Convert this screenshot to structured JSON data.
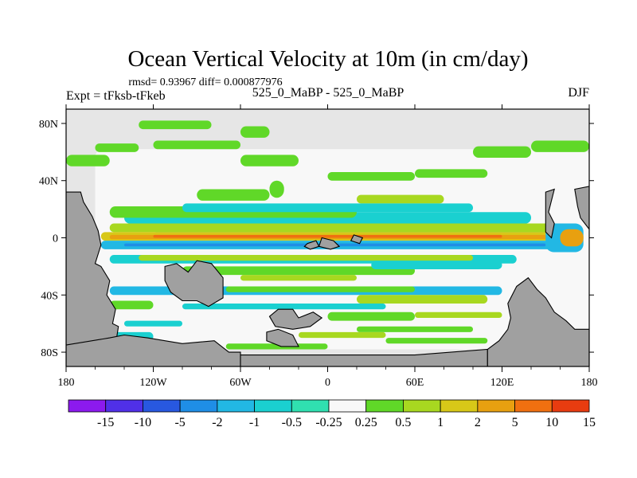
{
  "chart_data": {
    "type": "heatmap",
    "title": "Ocean Vertical Velocity at 10m (in cm/day)",
    "subtitle": "rmsd= 0.93967 diff= 0.000877976",
    "left_label": "Expt = tFksb-tFkeb",
    "center_label": "525_0_MaBP - 525_0_MaBP",
    "right_label": "DJF",
    "x_axis": {
      "range": [
        -180,
        180
      ],
      "ticks": [
        -180,
        -120,
        -60,
        0,
        60,
        120,
        180
      ],
      "tick_labels": [
        "180",
        "120W",
        "60W",
        "0",
        "60E",
        "120E",
        "180"
      ]
    },
    "y_axis": {
      "range": [
        -90,
        90
      ],
      "ticks": [
        80,
        40,
        0,
        -40,
        -80
      ],
      "tick_labels": [
        "80N",
        "40N",
        "0",
        "40S",
        "80S"
      ]
    },
    "colorbar": {
      "levels": [
        "-15",
        "-10",
        "-5",
        "-2",
        "-1",
        "-0.5",
        "-0.25",
        "0.25",
        "0.5",
        "1",
        "2",
        "5",
        "10",
        "15"
      ],
      "colors": [
        "#8c1aee",
        "#5030e8",
        "#2858e0",
        "#1f8ee6",
        "#22b8e4",
        "#1ad0d0",
        "#30e0b0",
        "#f8f8f8",
        "#60d828",
        "#a8d820",
        "#d8c818",
        "#e8a010",
        "#f07010",
        "#e83c10"
      ]
    },
    "land_color": "#a0a0a0",
    "missing_color": "#e6e6e6",
    "regions": {
      "land": [
        {
          "name": "land-west-americas",
          "lonlat": [
            [
              -180,
              32
            ],
            [
              -170,
              32
            ],
            [
              -168,
              25
            ],
            [
              -162,
              15
            ],
            [
              -158,
              5
            ],
            [
              -156,
              -5
            ],
            [
              -160,
              -18
            ],
            [
              -156,
              -20
            ],
            [
              -150,
              -30
            ],
            [
              -152,
              -40
            ],
            [
              -146,
              -50
            ],
            [
              -148,
              -60
            ],
            [
              -144,
              -62
            ],
            [
              -146,
              -75
            ],
            [
              -180,
              -75
            ]
          ]
        },
        {
          "name": "land-south-america",
          "lonlat": [
            [
              -112,
              -20
            ],
            [
              -104,
              -18
            ],
            [
              -96,
              -24
            ],
            [
              -90,
              -16
            ],
            [
              -80,
              -18
            ],
            [
              -72,
              -28
            ],
            [
              -72,
              -42
            ],
            [
              -82,
              -48
            ],
            [
              -90,
              -44
            ],
            [
              -100,
              -44
            ],
            [
              -108,
              -38
            ],
            [
              -112,
              -30
            ]
          ]
        },
        {
          "name": "land-antarctica-west",
          "lonlat": [
            [
              -180,
              -75
            ],
            [
              -150,
              -70
            ],
            [
              -140,
              -68
            ],
            [
              -124,
              -70
            ],
            [
              -100,
              -74
            ],
            [
              -78,
              -72
            ],
            [
              -68,
              -80
            ],
            [
              -60,
              -80
            ],
            [
              -60,
              -90
            ],
            [
              -180,
              -90
            ]
          ]
        },
        {
          "name": "land-antarctic-floor",
          "lonlat": [
            [
              -60,
              -82
            ],
            [
              20,
              -82
            ],
            [
              60,
              -82
            ],
            [
              110,
              -78
            ],
            [
              110,
              -90
            ],
            [
              -60,
              -90
            ]
          ]
        },
        {
          "name": "land-pacific-island-1",
          "lonlat": [
            [
              -40,
              -55
            ],
            [
              -34,
              -50
            ],
            [
              -24,
              -50
            ],
            [
              -20,
              -56
            ],
            [
              -10,
              -52
            ],
            [
              -4,
              -56
            ],
            [
              -12,
              -62
            ],
            [
              -24,
              -64
            ],
            [
              -36,
              -62
            ]
          ]
        },
        {
          "name": "land-pacific-island-2",
          "lonlat": [
            [
              -42,
              -66
            ],
            [
              -34,
              -64
            ],
            [
              -24,
              -68
            ],
            [
              -20,
              -76
            ],
            [
              -32,
              -76
            ],
            [
              -42,
              -72
            ]
          ]
        },
        {
          "name": "land-equatorial-island-1",
          "lonlat": [
            [
              -4,
              0
            ],
            [
              4,
              -2
            ],
            [
              8,
              -6
            ],
            [
              2,
              -8
            ],
            [
              -6,
              -6
            ]
          ]
        },
        {
          "name": "land-equatorial-island-2",
          "lonlat": [
            [
              -14,
              -4
            ],
            [
              -8,
              -2
            ],
            [
              -6,
              -6
            ],
            [
              -12,
              -8
            ],
            [
              -16,
              -6
            ]
          ]
        },
        {
          "name": "land-equatorial-island-3",
          "lonlat": [
            [
              18,
              2
            ],
            [
              24,
              0
            ],
            [
              22,
              -4
            ],
            [
              16,
              -2
            ]
          ]
        },
        {
          "name": "land-east-continent",
          "lonlat": [
            [
              130,
              -34
            ],
            [
              138,
              -28
            ],
            [
              144,
              -36
            ],
            [
              150,
              -42
            ],
            [
              156,
              -52
            ],
            [
              164,
              -58
            ],
            [
              170,
              -64
            ],
            [
              180,
              -64
            ],
            [
              180,
              -90
            ],
            [
              110,
              -90
            ],
            [
              110,
              -78
            ],
            [
              118,
              -72
            ],
            [
              124,
              -64
            ],
            [
              126,
              -56
            ],
            [
              124,
              -46
            ]
          ]
        },
        {
          "name": "land-east-peninsula",
          "lonlat": [
            [
              150,
              32
            ],
            [
              156,
              34
            ],
            [
              152,
              18
            ],
            [
              156,
              10
            ],
            [
              154,
              0
            ],
            [
              150,
              4
            ]
          ]
        },
        {
          "name": "land-east-edge",
          "lonlat": [
            [
              170,
              34
            ],
            [
              180,
              36
            ],
            [
              180,
              6
            ],
            [
              174,
              14
            ],
            [
              172,
              22
            ]
          ]
        }
      ]
    }
  }
}
